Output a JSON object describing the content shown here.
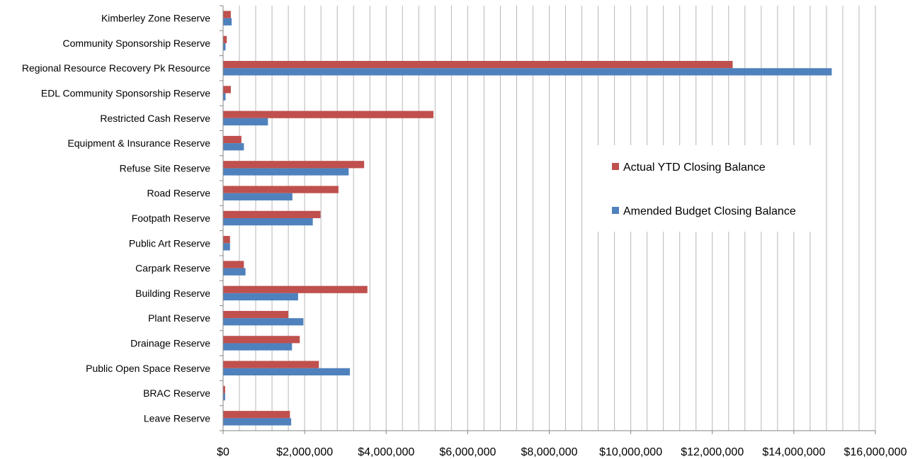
{
  "chart_data": {
    "type": "bar",
    "orientation": "horizontal",
    "categories": [
      "Kimberley Zone Reserve",
      "Community Sponsorship Reserve",
      "Regional Resource Recovery Pk Resource",
      "EDL Community Sponsorship Reserve",
      "Restricted Cash Reserve",
      "Equipment & Insurance Reserve",
      "Refuse Site Reserve",
      "Road Reserve",
      "Footpath Reserve",
      "Public Art Reserve",
      "Carpark Reserve",
      "Building Reserve",
      "Plant Reserve",
      "Drainage Reserve",
      "Public Open Space Reserve",
      "BRAC  Reserve",
      "Leave Reserve"
    ],
    "series": [
      {
        "name": "Actual YTD Closing Balance",
        "color": "#c0504d",
        "values": [
          190000,
          90000,
          12500000,
          190000,
          5160000,
          450000,
          3460000,
          2830000,
          2390000,
          170000,
          510000,
          3540000,
          1600000,
          1880000,
          2350000,
          50000,
          1640000
        ]
      },
      {
        "name": "Amended Budget Closing Balance",
        "color": "#4f81bd",
        "values": [
          210000,
          60000,
          14930000,
          60000,
          1100000,
          510000,
          3080000,
          1700000,
          2200000,
          170000,
          550000,
          1840000,
          1970000,
          1690000,
          3110000,
          50000,
          1670000
        ]
      }
    ],
    "xlim": [
      0,
      16000000
    ],
    "x_ticks": [
      0,
      2000000,
      4000000,
      6000000,
      8000000,
      10000000,
      12000000,
      14000000,
      16000000
    ],
    "x_tick_labels": [
      "$0",
      "$2,000,000",
      "$4,000,000",
      "$6,000,000",
      "$8,000,000",
      "$10,000,000",
      "$12,000,000",
      "$14,000,000",
      "$16,000,000"
    ],
    "minor_gridlines_per_major": 5,
    "grid": true,
    "legend": "right",
    "title": "",
    "xlabel": "",
    "ylabel": ""
  }
}
